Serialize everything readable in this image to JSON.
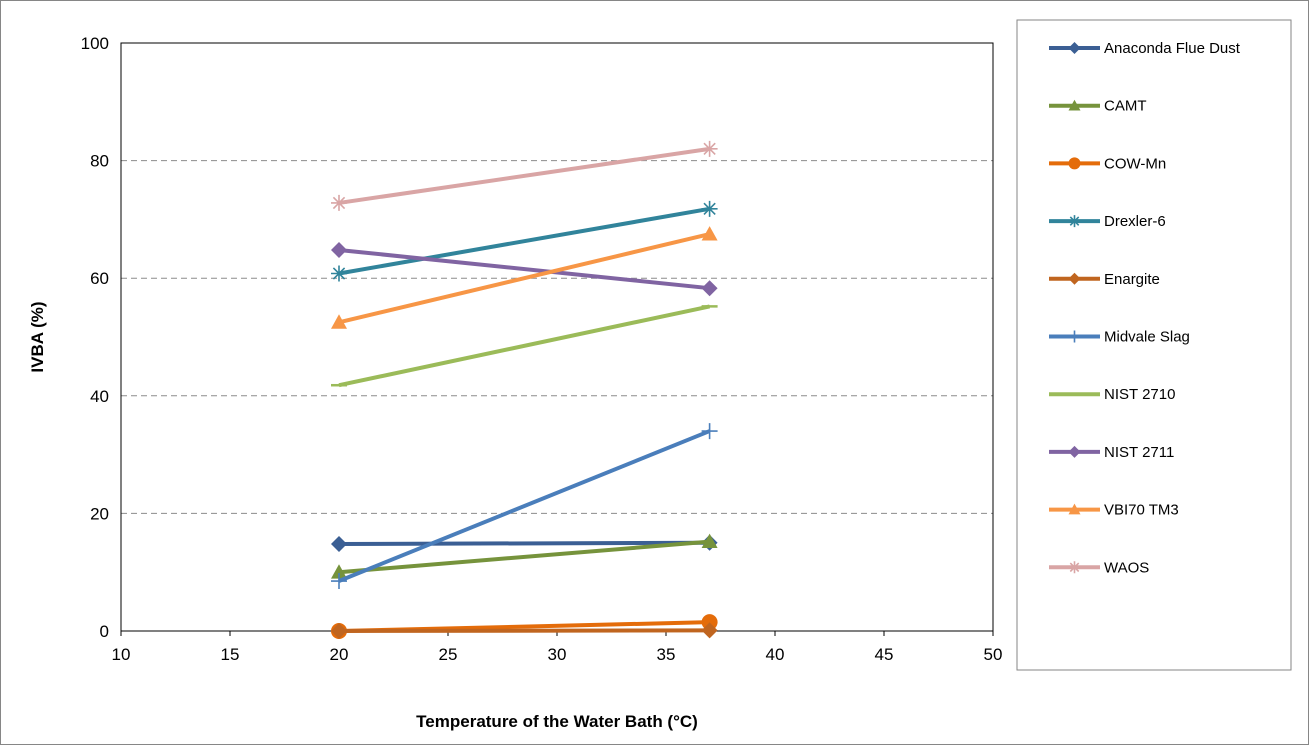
{
  "chart_data": {
    "type": "line",
    "title": "",
    "xlabel": "Temperature of the Water Bath (°C)",
    "ylabel": "IVBA (%)",
    "xlim": [
      10,
      50
    ],
    "ylim": [
      0,
      100
    ],
    "xticks": [
      10,
      15,
      20,
      25,
      30,
      35,
      40,
      45,
      50
    ],
    "yticks": [
      0,
      20,
      40,
      60,
      80,
      100
    ],
    "grid": "horizontal dashed",
    "legend_position": "right",
    "series": [
      {
        "name": "Anaconda Flue Dust",
        "color": "#3b5f94",
        "marker": "diamond",
        "x": [
          20,
          37
        ],
        "y": [
          14.8,
          15.0
        ]
      },
      {
        "name": "CAMT",
        "color": "#76933c",
        "marker": "triangle",
        "x": [
          20,
          37
        ],
        "y": [
          10.0,
          15.2
        ]
      },
      {
        "name": "COW-Mn",
        "color": "#e46c0a",
        "marker": "circle",
        "x": [
          20,
          37
        ],
        "y": [
          0.0,
          1.5
        ]
      },
      {
        "name": "Drexler-6",
        "color": "#31849b",
        "marker": "star",
        "x": [
          20,
          37
        ],
        "y": [
          60.8,
          71.8
        ]
      },
      {
        "name": "Enargite",
        "color": "#c0651f",
        "marker": "diamond",
        "x": [
          20,
          37
        ],
        "y": [
          0.0,
          0.1
        ]
      },
      {
        "name": "Midvale Slag",
        "color": "#4a7ebb",
        "marker": "plus",
        "x": [
          20,
          37
        ],
        "y": [
          8.5,
          34.0
        ]
      },
      {
        "name": "NIST 2710",
        "color": "#9bbb59",
        "marker": "dash",
        "x": [
          20,
          37
        ],
        "y": [
          41.8,
          55.2
        ]
      },
      {
        "name": "NIST 2711",
        "color": "#8064a2",
        "marker": "diamond",
        "x": [
          20,
          37
        ],
        "y": [
          64.8,
          58.3
        ]
      },
      {
        "name": "VBI70 TM3",
        "color": "#f79646",
        "marker": "triangle",
        "x": [
          20,
          37
        ],
        "y": [
          52.5,
          67.5
        ]
      },
      {
        "name": "WAOS",
        "color": "#d9a5a5",
        "marker": "star",
        "x": [
          20,
          37
        ],
        "y": [
          72.8,
          82.0
        ]
      }
    ]
  }
}
